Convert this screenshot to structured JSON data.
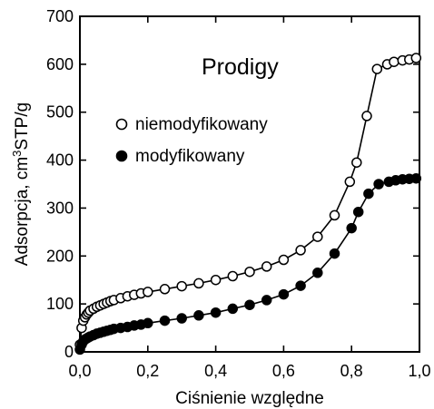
{
  "chart_data": {
    "type": "scatter",
    "title": "Prodigy",
    "xlabel": "Ciśnienie względne",
    "ylabel_main": "Adsorpcja, cm",
    "ylabel_sup": "3",
    "ylabel_tail": "STP/g",
    "xlim": [
      0,
      1
    ],
    "ylim": [
      0,
      700
    ],
    "xticks": [
      0,
      0.2,
      0.4,
      0.6,
      0.8,
      1.0
    ],
    "xtick_labels": [
      "0,0",
      "0,2",
      "0,4",
      "0,6",
      "0,8",
      "1,0"
    ],
    "yticks": [
      0,
      100,
      200,
      300,
      400,
      500,
      600,
      700
    ],
    "ytick_labels": [
      "0",
      "100",
      "200",
      "300",
      "400",
      "500",
      "600",
      "700"
    ],
    "grid": false,
    "legend_position": "left",
    "series": [
      {
        "name": "niemodyfikowany",
        "marker": "open-circle",
        "x": [
          0.0,
          0.005,
          0.01,
          0.015,
          0.02,
          0.025,
          0.03,
          0.04,
          0.05,
          0.06,
          0.07,
          0.08,
          0.09,
          0.1,
          0.12,
          0.14,
          0.16,
          0.18,
          0.2,
          0.25,
          0.3,
          0.35,
          0.4,
          0.45,
          0.5,
          0.55,
          0.6,
          0.65,
          0.7,
          0.75,
          0.795,
          0.815,
          0.845,
          0.875,
          0.905,
          0.925,
          0.95,
          0.97,
          0.99
        ],
        "y": [
          15,
          50,
          65,
          72,
          78,
          82,
          86,
          90,
          94,
          97,
          100,
          103,
          106,
          108,
          112,
          116,
          119,
          122,
          125,
          131,
          137,
          143,
          150,
          158,
          167,
          178,
          192,
          212,
          240,
          285,
          355,
          395,
          492,
          590,
          600,
          605,
          608,
          610,
          613
        ]
      },
      {
        "name": "modyfikowany",
        "marker": "filled-circle",
        "x": [
          0.0,
          0.005,
          0.01,
          0.015,
          0.02,
          0.025,
          0.03,
          0.04,
          0.05,
          0.06,
          0.07,
          0.08,
          0.09,
          0.1,
          0.12,
          0.14,
          0.16,
          0.18,
          0.2,
          0.25,
          0.3,
          0.35,
          0.4,
          0.45,
          0.5,
          0.55,
          0.6,
          0.65,
          0.7,
          0.75,
          0.8,
          0.82,
          0.85,
          0.88,
          0.91,
          0.93,
          0.95,
          0.97,
          0.99
        ],
        "y": [
          5,
          15,
          22,
          26,
          28,
          30,
          32,
          35,
          38,
          40,
          42,
          44,
          46,
          48,
          50,
          52,
          55,
          57,
          60,
          65,
          70,
          76,
          82,
          90,
          98,
          108,
          120,
          138,
          165,
          205,
          258,
          292,
          330,
          350,
          355,
          358,
          360,
          361,
          362
        ]
      }
    ]
  }
}
